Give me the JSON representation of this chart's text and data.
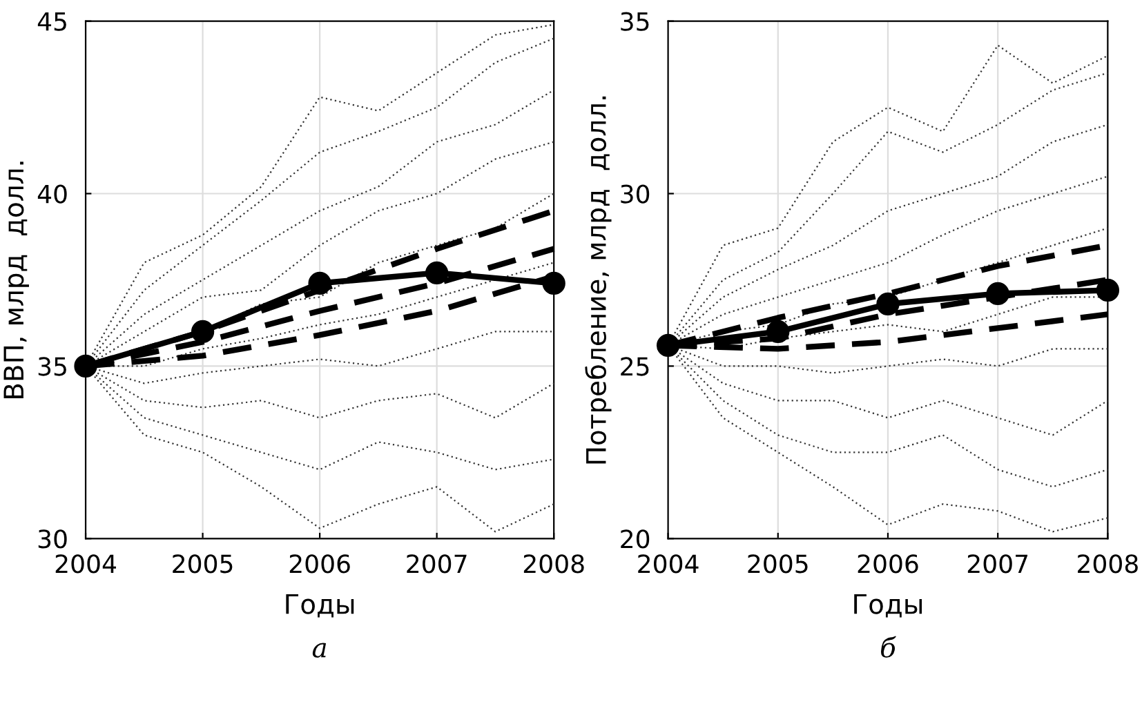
{
  "chart_data": [
    {
      "type": "line",
      "xlabel": "Годы",
      "ylabel": "ВВП, млрд  долл.",
      "annotations": [
        "а"
      ],
      "xlim": [
        2004,
        2008
      ],
      "xticks": [
        2004,
        2005,
        2006,
        2007,
        2008
      ],
      "ylim": [
        30,
        45
      ],
      "yticks": [
        30,
        35,
        40,
        45
      ],
      "grid": true,
      "series": [
        {
          "color": "#333333",
          "line_style": "dotted",
          "marker": "none",
          "x": [
            2004,
            2004.5,
            2005,
            2005.5,
            2006,
            2006.5,
            2007,
            2007.5,
            2008
          ],
          "values": [
            35,
            38.0,
            38.8,
            40.2,
            42.8,
            42.4,
            43.5,
            44.6,
            44.9
          ]
        },
        {
          "color": "#333333",
          "line_style": "dotted",
          "marker": "none",
          "x": [
            2004,
            2004.5,
            2005,
            2005.5,
            2006,
            2006.5,
            2007,
            2007.5,
            2008
          ],
          "values": [
            35,
            37.2,
            38.5,
            39.8,
            41.2,
            41.8,
            42.5,
            43.8,
            44.5
          ]
        },
        {
          "color": "#333333",
          "line_style": "dotted",
          "marker": "none",
          "x": [
            2004,
            2004.5,
            2005,
            2005.5,
            2006,
            2006.5,
            2007,
            2007.5,
            2008
          ],
          "values": [
            35,
            36.5,
            37.5,
            38.5,
            39.5,
            40.2,
            41.5,
            42.0,
            43.0
          ]
        },
        {
          "color": "#333333",
          "line_style": "dotted",
          "marker": "none",
          "x": [
            2004,
            2004.5,
            2005,
            2005.5,
            2006,
            2006.5,
            2007,
            2007.5,
            2008
          ],
          "values": [
            35,
            36.0,
            37.0,
            37.2,
            38.5,
            39.5,
            40.0,
            41.0,
            41.5
          ]
        },
        {
          "color": "#333333",
          "line_style": "dotted",
          "marker": "none",
          "x": [
            2004,
            2004.5,
            2005,
            2005.5,
            2006,
            2006.5,
            2007,
            2007.5,
            2008
          ],
          "values": [
            35,
            35.5,
            36.0,
            36.8,
            37.0,
            38.0,
            38.5,
            39.0,
            40.0
          ]
        },
        {
          "color": "#333333",
          "line_style": "dotted",
          "marker": "none",
          "x": [
            2004,
            2004.5,
            2005,
            2005.5,
            2006,
            2006.5,
            2007,
            2007.5,
            2008
          ],
          "values": [
            35,
            35.0,
            35.5,
            35.8,
            36.2,
            36.5,
            37.0,
            37.5,
            38.0
          ]
        },
        {
          "color": "#333333",
          "line_style": "dotted",
          "marker": "none",
          "x": [
            2004,
            2004.5,
            2005,
            2005.5,
            2006,
            2006.5,
            2007,
            2007.5,
            2008
          ],
          "values": [
            35,
            34.5,
            34.8,
            35.0,
            35.2,
            35.0,
            35.5,
            36.0,
            36.0
          ]
        },
        {
          "color": "#333333",
          "line_style": "dotted",
          "marker": "none",
          "x": [
            2004,
            2004.5,
            2005,
            2005.5,
            2006,
            2006.5,
            2007,
            2007.5,
            2008
          ],
          "values": [
            35,
            34.0,
            33.8,
            34.0,
            33.5,
            34.0,
            34.2,
            33.5,
            34.5
          ]
        },
        {
          "color": "#333333",
          "line_style": "dotted",
          "marker": "none",
          "x": [
            2004,
            2004.5,
            2005,
            2005.5,
            2006,
            2006.5,
            2007,
            2007.5,
            2008
          ],
          "values": [
            35,
            33.5,
            33.0,
            32.5,
            32.0,
            32.8,
            32.5,
            32.0,
            32.3
          ]
        },
        {
          "color": "#333333",
          "line_style": "dotted",
          "marker": "none",
          "x": [
            2004,
            2004.5,
            2005,
            2005.5,
            2006,
            2006.5,
            2007,
            2007.5,
            2008
          ],
          "values": [
            35,
            33.0,
            32.5,
            31.5,
            30.3,
            31.0,
            31.5,
            30.2,
            31.0
          ]
        },
        {
          "color": "#000000",
          "line_style": "dashed",
          "marker": "none",
          "x": [
            2004,
            2005,
            2006,
            2007,
            2008
          ],
          "values": [
            35.0,
            36.0,
            37.2,
            38.4,
            39.5
          ]
        },
        {
          "color": "#000000",
          "line_style": "dashed",
          "marker": "none",
          "x": [
            2004,
            2005,
            2006,
            2007,
            2008
          ],
          "values": [
            35.0,
            35.7,
            36.6,
            37.4,
            38.4
          ]
        },
        {
          "color": "#000000",
          "line_style": "dashed",
          "marker": "none",
          "x": [
            2004,
            2005,
            2006,
            2007,
            2008
          ],
          "values": [
            35.0,
            35.3,
            35.9,
            36.6,
            37.6
          ]
        },
        {
          "color": "#000000",
          "line_style": "solid",
          "marker": "circle",
          "x": [
            2004,
            2005,
            2006,
            2007,
            2008
          ],
          "values": [
            35.0,
            36.0,
            37.4,
            37.7,
            37.4
          ]
        }
      ]
    },
    {
      "type": "line",
      "xlabel": "Годы",
      "ylabel": "Потребление, млрд  долл.",
      "annotations": [
        "б"
      ],
      "xlim": [
        2004,
        2008
      ],
      "xticks": [
        2004,
        2005,
        2006,
        2007,
        2008
      ],
      "ylim": [
        20,
        35
      ],
      "yticks": [
        20,
        25,
        30,
        35
      ],
      "grid": true,
      "series": [
        {
          "color": "#333333",
          "line_style": "dotted",
          "marker": "none",
          "x": [
            2004,
            2004.5,
            2005,
            2005.5,
            2006,
            2006.5,
            2007,
            2007.5,
            2008
          ],
          "values": [
            25.6,
            28.5,
            29.0,
            31.5,
            32.5,
            31.8,
            34.3,
            33.2,
            34.0
          ]
        },
        {
          "color": "#333333",
          "line_style": "dotted",
          "marker": "none",
          "x": [
            2004,
            2004.5,
            2005,
            2005.5,
            2006,
            2006.5,
            2007,
            2007.5,
            2008
          ],
          "values": [
            25.6,
            27.5,
            28.3,
            30.0,
            31.8,
            31.2,
            32.0,
            33.0,
            33.5
          ]
        },
        {
          "color": "#333333",
          "line_style": "dotted",
          "marker": "none",
          "x": [
            2004,
            2004.5,
            2005,
            2005.5,
            2006,
            2006.5,
            2007,
            2007.5,
            2008
          ],
          "values": [
            25.6,
            27.0,
            27.8,
            28.5,
            29.5,
            30.0,
            30.5,
            31.5,
            32.0
          ]
        },
        {
          "color": "#333333",
          "line_style": "dotted",
          "marker": "none",
          "x": [
            2004,
            2004.5,
            2005,
            2005.5,
            2006,
            2006.5,
            2007,
            2007.5,
            2008
          ],
          "values": [
            25.6,
            26.5,
            27.0,
            27.5,
            28.0,
            28.8,
            29.5,
            30.0,
            30.5
          ]
        },
        {
          "color": "#333333",
          "line_style": "dotted",
          "marker": "none",
          "x": [
            2004,
            2004.5,
            2005,
            2005.5,
            2006,
            2006.5,
            2007,
            2007.5,
            2008
          ],
          "values": [
            25.6,
            26.0,
            26.2,
            26.8,
            27.0,
            27.5,
            28.0,
            28.5,
            29.0
          ]
        },
        {
          "color": "#333333",
          "line_style": "dotted",
          "marker": "none",
          "x": [
            2004,
            2004.5,
            2005,
            2005.5,
            2006,
            2006.5,
            2007,
            2007.5,
            2008
          ],
          "values": [
            25.6,
            25.5,
            25.8,
            26.0,
            26.2,
            26.0,
            26.5,
            27.0,
            27.0
          ]
        },
        {
          "color": "#333333",
          "line_style": "dotted",
          "marker": "none",
          "x": [
            2004,
            2004.5,
            2005,
            2005.5,
            2006,
            2006.5,
            2007,
            2007.5,
            2008
          ],
          "values": [
            25.6,
            25.0,
            25.0,
            24.8,
            25.0,
            25.2,
            25.0,
            25.5,
            25.5
          ]
        },
        {
          "color": "#333333",
          "line_style": "dotted",
          "marker": "none",
          "x": [
            2004,
            2004.5,
            2005,
            2005.5,
            2006,
            2006.5,
            2007,
            2007.5,
            2008
          ],
          "values": [
            25.6,
            24.5,
            24.0,
            24.0,
            23.5,
            24.0,
            23.5,
            23.0,
            24.0
          ]
        },
        {
          "color": "#333333",
          "line_style": "dotted",
          "marker": "none",
          "x": [
            2004,
            2004.5,
            2005,
            2005.5,
            2006,
            2006.5,
            2007,
            2007.5,
            2008
          ],
          "values": [
            25.6,
            24.0,
            23.0,
            22.5,
            22.5,
            23.0,
            22.0,
            21.5,
            22.0
          ]
        },
        {
          "color": "#333333",
          "line_style": "dotted",
          "marker": "none",
          "x": [
            2004,
            2004.5,
            2005,
            2005.5,
            2006,
            2006.5,
            2007,
            2007.5,
            2008
          ],
          "values": [
            25.6,
            23.5,
            22.5,
            21.5,
            20.4,
            21.0,
            20.8,
            20.2,
            20.6
          ]
        },
        {
          "color": "#000000",
          "line_style": "dashed",
          "marker": "none",
          "x": [
            2004,
            2005,
            2006,
            2007,
            2008
          ],
          "values": [
            25.6,
            26.4,
            27.1,
            27.9,
            28.5
          ]
        },
        {
          "color": "#000000",
          "line_style": "dashed",
          "marker": "none",
          "x": [
            2004,
            2005,
            2006,
            2007,
            2008
          ],
          "values": [
            25.6,
            25.8,
            26.5,
            27.0,
            27.5
          ]
        },
        {
          "color": "#000000",
          "line_style": "dashed",
          "marker": "none",
          "x": [
            2004,
            2005,
            2006,
            2007,
            2008
          ],
          "values": [
            25.6,
            25.5,
            25.7,
            26.1,
            26.5
          ]
        },
        {
          "color": "#000000",
          "line_style": "solid",
          "marker": "circle",
          "x": [
            2004,
            2005,
            2006,
            2007,
            2008
          ],
          "values": [
            25.6,
            26.0,
            26.8,
            27.1,
            27.2
          ]
        }
      ]
    }
  ]
}
